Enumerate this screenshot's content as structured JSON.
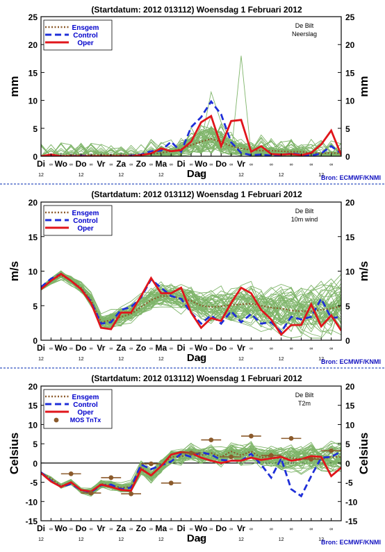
{
  "colors": {
    "frame": "#000000",
    "separator": "#3050c0",
    "members": "#7fb56a",
    "ensgem": "#8b5a2b",
    "control": "#1f2fd8",
    "oper": "#e0151b",
    "mos": "#8b5a2b",
    "source": "#1010c0"
  },
  "x_day_labels": [
    "Di",
    "Wo",
    "Do",
    "Vr",
    "Za",
    "Zo",
    "Ma",
    "Di",
    "Wo",
    "Do",
    "Vr"
  ],
  "x_hour_label": "12",
  "x_midnight_symbol": "∞",
  "x_title": "Dag",
  "source_label": "Bron: ECMWF/KNMI",
  "chart_data": [
    {
      "type": "line",
      "title": "(Startdatum: 2012 013112)  Woensdag    1 Februari  2012",
      "station": "De Bilt",
      "variable": "Neerslag",
      "ylabel": "mm",
      "ylim": [
        0,
        25
      ],
      "yticks": [
        0,
        5,
        10,
        15,
        20,
        25
      ],
      "zero_line": false,
      "legend": [
        "Ensgem",
        "Control",
        "Oper"
      ],
      "grid": false,
      "series": [
        {
          "name": "Ensgem",
          "style": "dotted",
          "values": [
            0,
            0.1,
            0.1,
            0.2,
            0.2,
            0.2,
            0.2,
            0.2,
            0.2,
            0.2,
            0.3,
            0.4,
            0.6,
            0.9,
            1.3,
            2.0,
            2.6,
            3.1,
            2.6,
            1.8,
            1.4,
            1.1,
            1.0,
            1.0,
            0.9,
            0.8,
            0.8,
            0.6,
            0.5,
            0.6,
            0.5
          ]
        },
        {
          "name": "Control",
          "style": "dashed",
          "values": [
            0,
            0.1,
            0,
            0,
            0.1,
            0,
            0,
            0,
            0,
            0.1,
            0.3,
            0.9,
            1.0,
            2.6,
            0.8,
            5.2,
            7.0,
            9.8,
            7.5,
            2.5,
            0.6,
            0.2,
            0.3,
            0.1,
            0.2,
            0.5,
            0.3,
            0.1,
            0.5,
            1.8,
            0.5
          ]
        },
        {
          "name": "Oper",
          "style": "solid",
          "values": [
            0,
            0.3,
            0,
            0,
            0,
            0,
            0,
            0,
            0,
            0,
            0.2,
            0.5,
            1.4,
            0.9,
            1.1,
            2.6,
            6.1,
            7.2,
            1.8,
            6.3,
            6.5,
            0.8,
            1.8,
            0.4,
            0.3,
            0.4,
            0.2,
            0.6,
            2.1,
            4.6,
            0.2
          ]
        }
      ],
      "member_peak_values": [
        18,
        11.5
      ]
    },
    {
      "type": "line",
      "title": "(Startdatum: 2012 013112)  Woensdag    1 Februari  2012",
      "station": "De Bilt",
      "variable": "10m wind",
      "ylabel": "m/s",
      "ylim": [
        0,
        20
      ],
      "yticks": [
        0,
        5,
        10,
        15,
        20
      ],
      "zero_line": false,
      "legend": [
        "Ensgem",
        "Control",
        "Oper"
      ],
      "grid": false,
      "series": [
        {
          "name": "Ensgem",
          "style": "dotted",
          "values": [
            7.5,
            8.6,
            9.4,
            8.6,
            7.6,
            5.8,
            2.6,
            2.9,
            3.4,
            3.8,
            4.8,
            5.8,
            6.4,
            6.4,
            6.0,
            5.7,
            5.0,
            4.8,
            4.9,
            5.1,
            5.2,
            5.3,
            5.0,
            4.7,
            4.6,
            4.3,
            4.2,
            4.2,
            4.4,
            4.6,
            4.9
          ]
        },
        {
          "name": "Control",
          "style": "dashed",
          "values": [
            7.7,
            8.9,
            9.6,
            8.6,
            7.4,
            5.6,
            2.4,
            2.6,
            4.4,
            4.8,
            6.2,
            8.8,
            7.6,
            6.4,
            6.0,
            4.0,
            2.4,
            3.6,
            2.4,
            4.2,
            2.6,
            3.8,
            2.4,
            2.6,
            1.2,
            3.4,
            3.0,
            3.4,
            6.0,
            3.2,
            3.4
          ]
        },
        {
          "name": "Oper",
          "style": "solid",
          "values": [
            7.4,
            8.6,
            9.6,
            8.6,
            7.4,
            5.4,
            1.8,
            1.6,
            4.0,
            4.0,
            6.4,
            9.0,
            6.8,
            6.8,
            7.6,
            4.0,
            1.8,
            3.2,
            2.8,
            5.4,
            7.6,
            6.8,
            4.4,
            3.0,
            0.8,
            2.2,
            2.2,
            5.2,
            2.0,
            3.6,
            1.4
          ]
        }
      ]
    },
    {
      "type": "line",
      "title": "(Startdatum: 2012 013112)  Woensdag    1 Februari  2012",
      "station": "De Bilt",
      "variable": "T2m",
      "ylabel": "Celsius",
      "ylim": [
        -15,
        20
      ],
      "yticks": [
        -15,
        -10,
        -5,
        0,
        5,
        10,
        15,
        20
      ],
      "zero_line": true,
      "legend": [
        "Ensgem",
        "Control",
        "Oper",
        "MOS TnTx"
      ],
      "grid": false,
      "series": [
        {
          "name": "Ensgem",
          "style": "dotted",
          "values": [
            -2.6,
            -4.0,
            -6.0,
            -5.0,
            -7.2,
            -7.6,
            -5.4,
            -5.8,
            -6.4,
            -6.2,
            -1.2,
            -3.4,
            -0.8,
            1.6,
            1.6,
            3.0,
            2.0,
            2.6,
            1.6,
            3.0,
            2.0,
            3.0,
            1.4,
            1.8,
            1.0,
            1.4,
            1.0,
            1.4,
            1.0,
            1.6,
            1.6
          ]
        },
        {
          "name": "Control",
          "style": "dashed",
          "values": [
            -2.4,
            -4.6,
            -6.2,
            -5.4,
            -7.0,
            -7.6,
            -5.8,
            -5.6,
            -6.8,
            -6.4,
            -0.4,
            -1.6,
            -0.6,
            0.4,
            2.4,
            1.6,
            2.8,
            2.2,
            0.8,
            0.6,
            0.6,
            2.4,
            -0.4,
            -3.8,
            1.2,
            -6.8,
            -8.6,
            -3.4,
            1.4,
            1.6,
            3.0
          ]
        },
        {
          "name": "Oper",
          "style": "solid",
          "values": [
            -2.6,
            -4.8,
            -6.2,
            -5.0,
            -7.0,
            -7.4,
            -5.6,
            -6.2,
            -7.0,
            -7.2,
            -1.6,
            -3.2,
            -0.8,
            2.2,
            2.8,
            2.6,
            1.4,
            0.6,
            0.0,
            0.6,
            0.6,
            1.4,
            0.8,
            1.2,
            1.6,
            0.6,
            1.0,
            1.8,
            1.6,
            -3.4,
            -1.2
          ]
        },
        {
          "name": "MOS TnTx",
          "style": "points",
          "points": [
            {
              "x": 3,
              "y": -2.8,
              "range": [
                2,
                4
              ]
            },
            {
              "x": 5,
              "y": -7.8,
              "range": [
                4,
                6
              ]
            },
            {
              "x": 7,
              "y": -3.8,
              "range": [
                6,
                8
              ]
            },
            {
              "x": 9,
              "y": -8.0,
              "range": [
                8,
                10
              ]
            },
            {
              "x": 11,
              "y": -0.2,
              "range": [
                10,
                12
              ]
            },
            {
              "x": 13,
              "y": -5.2,
              "range": [
                12,
                14
              ]
            },
            {
              "x": 15,
              "y": 2.6,
              "range": [
                14,
                16
              ]
            },
            {
              "x": 17,
              "y": 6.0,
              "range": [
                16,
                18
              ]
            },
            {
              "x": 19,
              "y": 1.6,
              "range": [
                18,
                20
              ]
            },
            {
              "x": 21,
              "y": 7.0,
              "range": [
                20,
                22
              ]
            },
            {
              "x": 23,
              "y": 2.0,
              "range": [
                22,
                24
              ]
            },
            {
              "x": 25,
              "y": 6.4,
              "range": [
                24,
                26
              ]
            },
            {
              "x": 27,
              "y": 1.0,
              "range": [
                26,
                28
              ]
            },
            {
              "x": 29,
              "y": 3.2,
              "range": [
                28,
                30
              ]
            }
          ]
        }
      ]
    }
  ]
}
